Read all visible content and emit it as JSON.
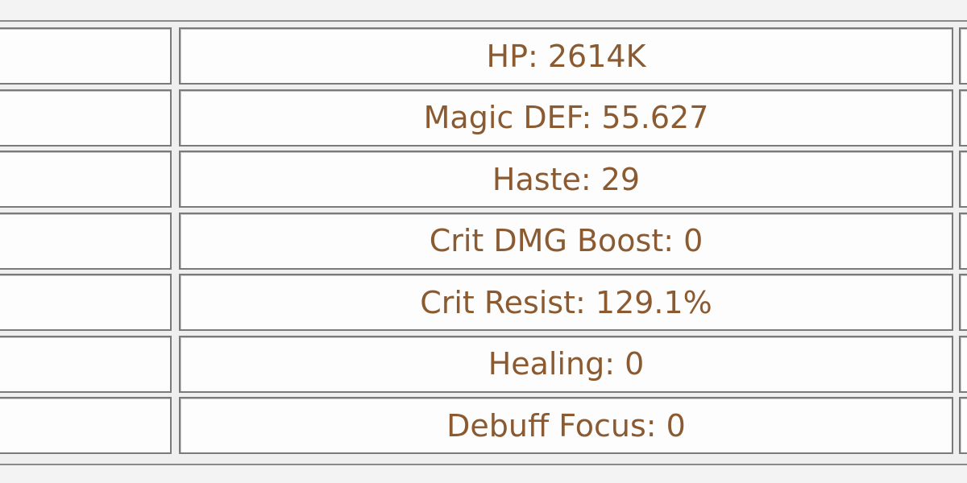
{
  "table": {
    "rows": [
      "HP: 2614K",
      "Magic DEF: 55.627",
      "Haste: 29",
      "Crit DMG Boost: 0",
      "Crit Resist: 129.1%",
      "Healing: 0",
      "Debuff Focus: 0"
    ]
  }
}
